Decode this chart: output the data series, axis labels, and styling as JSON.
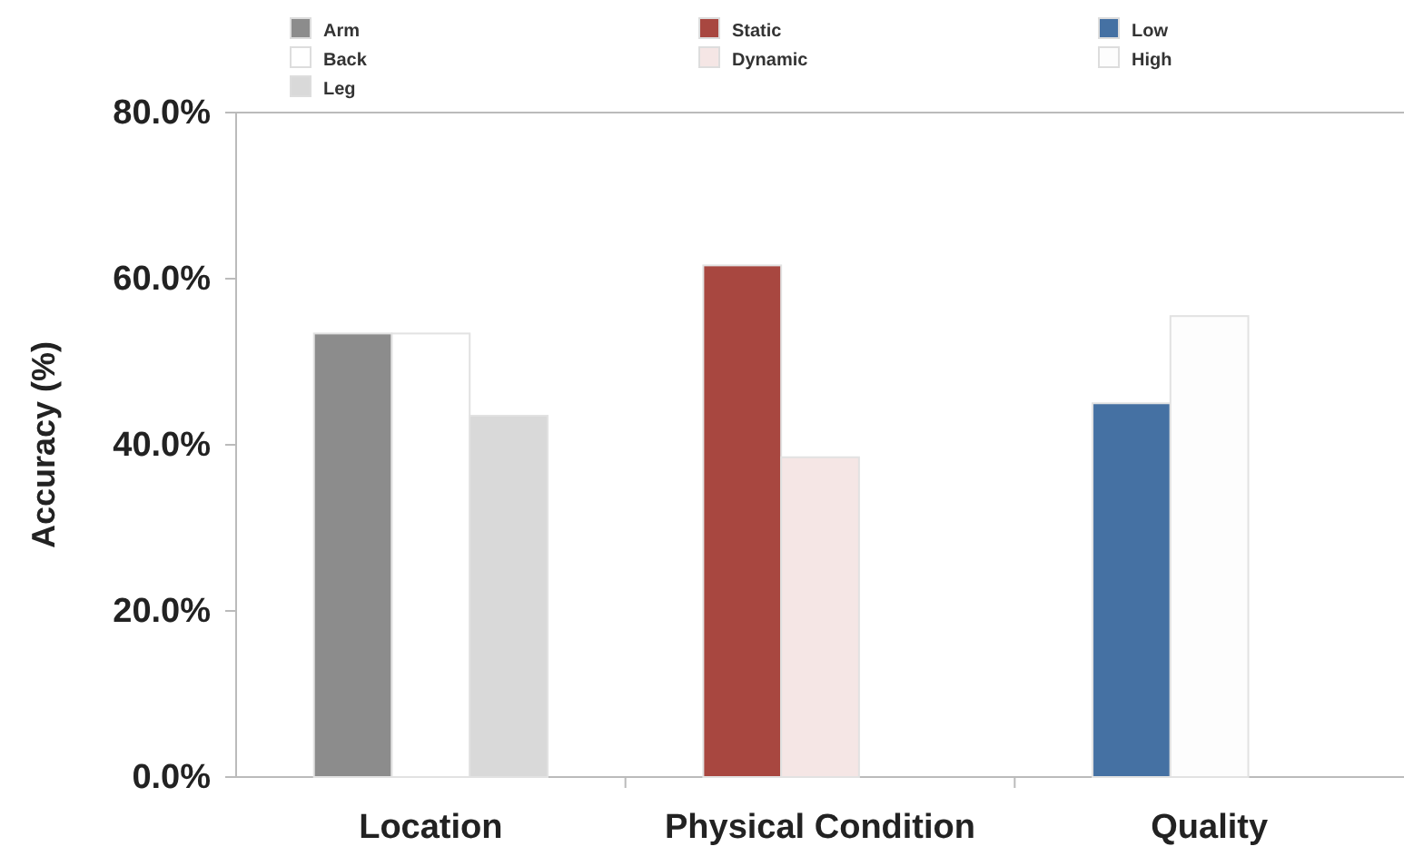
{
  "chart_data": {
    "type": "bar",
    "ylabel": "Accuracy (%)",
    "categories": [
      "Location",
      "Physical Condition",
      "Quality"
    ],
    "series": [
      {
        "name": "Arm",
        "color": "#8c8c8c",
        "values": [
          53.4,
          null,
          null
        ]
      },
      {
        "name": "Back",
        "color": "#ffffff",
        "values": [
          53.4,
          null,
          null
        ]
      },
      {
        "name": "Leg",
        "color": "#d9d9d9",
        "values": [
          43.5,
          null,
          null
        ]
      },
      {
        "name": "Static",
        "color": "#a84740",
        "values": [
          null,
          61.6,
          null
        ]
      },
      {
        "name": "Dynamic",
        "color": "#f5e6e5",
        "values": [
          null,
          38.5,
          null
        ]
      },
      {
        "name": "Low",
        "color": "#4571a3",
        "values": [
          null,
          null,
          45.0
        ]
      },
      {
        "name": "High",
        "color": "#fdfdfd",
        "values": [
          null,
          null,
          55.5
        ]
      }
    ],
    "ylim": [
      0,
      80
    ],
    "yticks": [
      {
        "value": 0,
        "label": "0.0%"
      },
      {
        "value": 20,
        "label": "20.0%"
      },
      {
        "value": 40,
        "label": "40.0%"
      },
      {
        "value": 60,
        "label": "60.0%"
      },
      {
        "value": 80,
        "label": "80.0%"
      }
    ],
    "legend": "top"
  }
}
